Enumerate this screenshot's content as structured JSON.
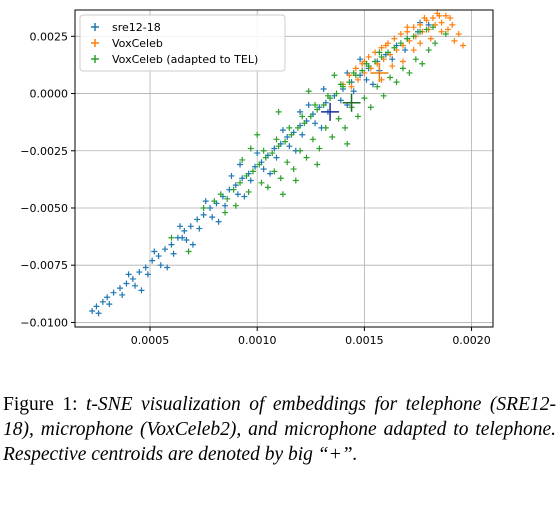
{
  "chart_data": {
    "type": "scatter",
    "title": "",
    "xlabel": "",
    "ylabel": "",
    "xlim": [
      0.00015,
      0.0021
    ],
    "ylim": [
      -0.0102,
      0.00365
    ],
    "grid": true,
    "legend_position": "top-left",
    "x_ticks": [
      0.0005,
      0.001,
      0.0015,
      0.002
    ],
    "x_tick_labels": [
      "0.0005",
      "0.0010",
      "0.0015",
      "0.0020"
    ],
    "y_ticks": [
      0.0025,
      0.0,
      -0.0025,
      -0.005,
      -0.0075,
      -0.01
    ],
    "y_tick_labels": [
      "0.0025",
      "0.0000",
      "−0.0025",
      "−0.0050",
      "−0.0075",
      "−0.0100"
    ],
    "marker": "+",
    "series": [
      {
        "name": "sre12-18",
        "color": "#1f77b4",
        "centroid": [
          0.00134,
          -0.0008
        ],
        "points": [
          [
            0.00023,
            -0.0095
          ],
          [
            0.00025,
            -0.0093
          ],
          [
            0.00028,
            -0.0091
          ],
          [
            0.0003,
            -0.0089
          ],
          [
            0.00033,
            -0.0087
          ],
          [
            0.00036,
            -0.0085
          ],
          [
            0.00039,
            -0.0083
          ],
          [
            0.00042,
            -0.0081
          ],
          [
            0.00045,
            -0.0078
          ],
          [
            0.00048,
            -0.0076
          ],
          [
            0.00051,
            -0.0073
          ],
          [
            0.00054,
            -0.0071
          ],
          [
            0.00057,
            -0.0068
          ],
          [
            0.0006,
            -0.0066
          ],
          [
            0.00063,
            -0.0063
          ],
          [
            0.00066,
            -0.006
          ],
          [
            0.00069,
            -0.0058
          ],
          [
            0.00072,
            -0.0055
          ],
          [
            0.00075,
            -0.0053
          ],
          [
            0.00078,
            -0.005
          ],
          [
            0.00081,
            -0.0048
          ],
          [
            0.00084,
            -0.0045
          ],
          [
            0.00087,
            -0.0042
          ],
          [
            0.0009,
            -0.004
          ],
          [
            0.00093,
            -0.0037
          ],
          [
            0.00096,
            -0.0035
          ],
          [
            0.00099,
            -0.0032
          ],
          [
            0.00102,
            -0.003
          ],
          [
            0.00105,
            -0.0027
          ],
          [
            0.00108,
            -0.0024
          ],
          [
            0.00111,
            -0.0022
          ],
          [
            0.00114,
            -0.0019
          ],
          [
            0.00117,
            -0.0017
          ],
          [
            0.0012,
            -0.0014
          ],
          [
            0.00123,
            -0.0012
          ],
          [
            0.00126,
            -0.0009
          ],
          [
            0.00129,
            -0.0006
          ],
          [
            0.00132,
            -0.0004
          ],
          [
            0.00136,
            -0.0001
          ],
          [
            0.0014,
            0.0002
          ],
          [
            0.00144,
            0.0005
          ],
          [
            0.00148,
            0.0008
          ],
          [
            0.00152,
            0.0011
          ],
          [
            0.00156,
            0.0014
          ],
          [
            0.0016,
            0.0017
          ],
          [
            0.00165,
            0.0021
          ],
          [
            0.0017,
            0.0024
          ],
          [
            0.00175,
            0.0027
          ],
          [
            0.0018,
            0.003
          ],
          [
            0.00026,
            -0.0096
          ],
          [
            0.00031,
            -0.0092
          ],
          [
            0.00037,
            -0.0088
          ],
          [
            0.00043,
            -0.0084
          ],
          [
            0.00049,
            -0.0079
          ],
          [
            0.00055,
            -0.0075
          ],
          [
            0.00061,
            -0.007
          ],
          [
            0.00067,
            -0.0064
          ],
          [
            0.00073,
            -0.0059
          ],
          [
            0.00079,
            -0.0054
          ],
          [
            0.00085,
            -0.0049
          ],
          [
            0.00091,
            -0.0044
          ],
          [
            0.00097,
            -0.0038
          ],
          [
            0.00103,
            -0.0033
          ],
          [
            0.00109,
            -0.0028
          ],
          [
            0.00115,
            -0.0023
          ],
          [
            0.00121,
            -0.0018
          ],
          [
            0.00127,
            -0.0013
          ],
          [
            0.00133,
            -0.0008
          ],
          [
            0.00139,
            -0.0003
          ],
          [
            0.00145,
            0.0001
          ],
          [
            0.00151,
            0.0006
          ],
          [
            0.00157,
            0.001
          ],
          [
            0.00163,
            0.0015
          ],
          [
            0.00169,
            0.0019
          ],
          [
            0.0004,
            -0.0079
          ],
          [
            0.00052,
            -0.0069
          ],
          [
            0.00064,
            -0.0058
          ],
          [
            0.00076,
            -0.0047
          ],
          [
            0.00088,
            -0.0036
          ],
          [
            0.001,
            -0.0026
          ],
          [
            0.00112,
            -0.0016
          ],
          [
            0.00124,
            -0.0005
          ],
          [
            0.00131,
            0.0002
          ],
          [
            0.00142,
            0.0009
          ],
          [
            0.00094,
            -0.0045
          ],
          [
            0.00082,
            -0.0056
          ],
          [
            0.0007,
            -0.0066
          ],
          [
            0.00058,
            -0.0076
          ],
          [
            0.00046,
            -0.0086
          ],
          [
            0.00118,
            -0.0025
          ],
          [
            0.00106,
            -0.0035
          ],
          [
            0.0013,
            -0.0015
          ],
          [
            0.00142,
            -0.0005
          ],
          [
            0.00154,
            0.0004
          ],
          [
            0.00065,
            -0.0063
          ],
          [
            0.00092,
            -0.0031
          ],
          [
            0.0012,
            -0.0008
          ],
          [
            0.00148,
            0.0015
          ],
          [
            0.00176,
            0.0031
          ]
        ]
      },
      {
        "name": "VoxCeleb",
        "color": "#ff7f0e",
        "centroid": [
          0.00157,
          0.0009
        ],
        "points": [
          [
            0.0014,
            0.0004
          ],
          [
            0.00143,
            0.0008
          ],
          [
            0.00146,
            0.0011
          ],
          [
            0.00149,
            0.0013
          ],
          [
            0.00152,
            0.0016
          ],
          [
            0.00155,
            0.0018
          ],
          [
            0.00158,
            0.002
          ],
          [
            0.00161,
            0.0022
          ],
          [
            0.00164,
            0.0024
          ],
          [
            0.00167,
            0.0026
          ],
          [
            0.0017,
            0.0027
          ],
          [
            0.00173,
            0.0029
          ],
          [
            0.00176,
            0.003
          ],
          [
            0.00179,
            0.0032
          ],
          [
            0.00182,
            0.0033
          ],
          [
            0.00185,
            0.0034
          ],
          [
            0.00188,
            0.0034
          ],
          [
            0.00191,
            0.003
          ],
          [
            0.00194,
            0.0026
          ],
          [
            0.00189,
            0.0028
          ],
          [
            0.00186,
            0.0031
          ],
          [
            0.00183,
            0.003
          ],
          [
            0.0018,
            0.0028
          ],
          [
            0.00177,
            0.0027
          ],
          [
            0.00174,
            0.0025
          ],
          [
            0.00171,
            0.0023
          ],
          [
            0.00168,
            0.0021
          ],
          [
            0.00165,
            0.0019
          ],
          [
            0.00162,
            0.0017
          ],
          [
            0.00159,
            0.0015
          ],
          [
            0.00156,
            0.0013
          ],
          [
            0.00153,
            0.0011
          ],
          [
            0.0015,
            0.0009
          ],
          [
            0.00147,
            0.0006
          ],
          [
            0.00144,
            0.0003
          ],
          [
            0.0015,
            0.0014
          ],
          [
            0.0016,
            0.0021
          ],
          [
            0.0017,
            0.0029
          ],
          [
            0.00178,
            0.0033
          ],
          [
            0.00184,
            0.0035
          ],
          [
            0.00163,
            0.0012
          ],
          [
            0.00173,
            0.0019
          ],
          [
            0.00181,
            0.0024
          ],
          [
            0.00192,
            0.0023
          ],
          [
            0.00196,
            0.0021
          ],
          [
            0.00158,
            0.0006
          ],
          [
            0.00168,
            0.0014
          ],
          [
            0.00176,
            0.0022
          ],
          [
            0.00186,
            0.0027
          ],
          [
            0.0019,
            0.0033
          ]
        ]
      },
      {
        "name": "VoxCeleb (adapted to TEL)",
        "color": "#2ca02c",
        "centroid": [
          0.00144,
          -0.0004
        ],
        "points": [
          [
            0.0008,
            -0.0047
          ],
          [
            0.00083,
            -0.0044
          ],
          [
            0.00086,
            -0.0046
          ],
          [
            0.00089,
            -0.0042
          ],
          [
            0.00092,
            -0.0039
          ],
          [
            0.00095,
            -0.0036
          ],
          [
            0.00098,
            -0.0034
          ],
          [
            0.00101,
            -0.0031
          ],
          [
            0.00104,
            -0.0028
          ],
          [
            0.00107,
            -0.0026
          ],
          [
            0.0011,
            -0.0023
          ],
          [
            0.00113,
            -0.0021
          ],
          [
            0.00116,
            -0.0018
          ],
          [
            0.00119,
            -0.0015
          ],
          [
            0.00122,
            -0.0013
          ],
          [
            0.00125,
            -0.001
          ],
          [
            0.00128,
            -0.0007
          ],
          [
            0.00131,
            -0.0005
          ],
          [
            0.00134,
            -0.0002
          ],
          [
            0.00137,
            0.0
          ],
          [
            0.0014,
            0.0003
          ],
          [
            0.00143,
            0.0005
          ],
          [
            0.00146,
            0.0008
          ],
          [
            0.00149,
            0.001
          ],
          [
            0.00152,
            0.0012
          ],
          [
            0.00155,
            0.0014
          ],
          [
            0.00158,
            0.0016
          ],
          [
            0.00161,
            0.0018
          ],
          [
            0.00164,
            0.002
          ],
          [
            0.00167,
            0.0022
          ],
          [
            0.0017,
            0.0024
          ],
          [
            0.00173,
            0.0025
          ],
          [
            0.00176,
            0.0027
          ],
          [
            0.00179,
            0.0028
          ],
          [
            0.00182,
            0.0029
          ],
          [
            0.00096,
            -0.0043
          ],
          [
            0.00102,
            -0.0039
          ],
          [
            0.00108,
            -0.0034
          ],
          [
            0.00114,
            -0.003
          ],
          [
            0.0012,
            -0.0025
          ],
          [
            0.00126,
            -0.002
          ],
          [
            0.00132,
            -0.0015
          ],
          [
            0.00138,
            -0.0011
          ],
          [
            0.00144,
            -0.0006
          ],
          [
            0.0015,
            -0.0002
          ],
          [
            0.00156,
            0.0003
          ],
          [
            0.00162,
            0.0007
          ],
          [
            0.00168,
            0.0011
          ],
          [
            0.00174,
            0.0015
          ],
          [
            0.0018,
            0.0019
          ],
          [
            0.00103,
            -0.0025
          ],
          [
            0.00109,
            -0.002
          ],
          [
            0.00115,
            -0.0015
          ],
          [
            0.00121,
            -0.001
          ],
          [
            0.00127,
            -0.0005
          ],
          [
            0.00133,
            -0.0001
          ],
          [
            0.00139,
            0.0004
          ],
          [
            0.00145,
            0.0009
          ],
          [
            0.00151,
            0.0013
          ],
          [
            0.00157,
            0.0018
          ],
          [
            0.00105,
            -0.0041
          ],
          [
            0.00111,
            -0.0037
          ],
          [
            0.00117,
            -0.0033
          ],
          [
            0.00123,
            -0.0028
          ],
          [
            0.00129,
            -0.0024
          ],
          [
            0.00135,
            -0.0019
          ],
          [
            0.00141,
            -0.0015
          ],
          [
            0.00147,
            -0.001
          ],
          [
            0.00153,
            -0.0006
          ],
          [
            0.00159,
            -0.0001
          ],
          [
            0.00075,
            -0.005
          ],
          [
            0.00085,
            -0.0052
          ],
          [
            0.0009,
            -0.0049
          ],
          [
            0.00118,
            -0.0038
          ],
          [
            0.00128,
            -0.0031
          ],
          [
            0.00165,
            0.0005
          ],
          [
            0.00171,
            0.0009
          ],
          [
            0.00177,
            0.0013
          ],
          [
            0.00183,
            0.0022
          ],
          [
            0.00188,
            0.0026
          ],
          [
            0.0006,
            -0.0063
          ],
          [
            0.00068,
            -0.0069
          ],
          [
            0.00112,
            -0.0044
          ],
          [
            0.00142,
            -0.0022
          ],
          [
            0.001,
            -0.0018
          ],
          [
            0.00093,
            -0.0029
          ],
          [
            0.00097,
            -0.0024
          ],
          [
            0.0011,
            -0.0008
          ],
          [
            0.00124,
            0.0001
          ],
          [
            0.00136,
            0.0008
          ]
        ]
      }
    ]
  },
  "caption": {
    "label": "Figure 1:",
    "text": "t-SNE visualization of embeddings for telephone (SRE12-18), microphone (VoxCeleb2), and microphone adapted to telephone. Respective centroids are denoted by big “+”."
  }
}
